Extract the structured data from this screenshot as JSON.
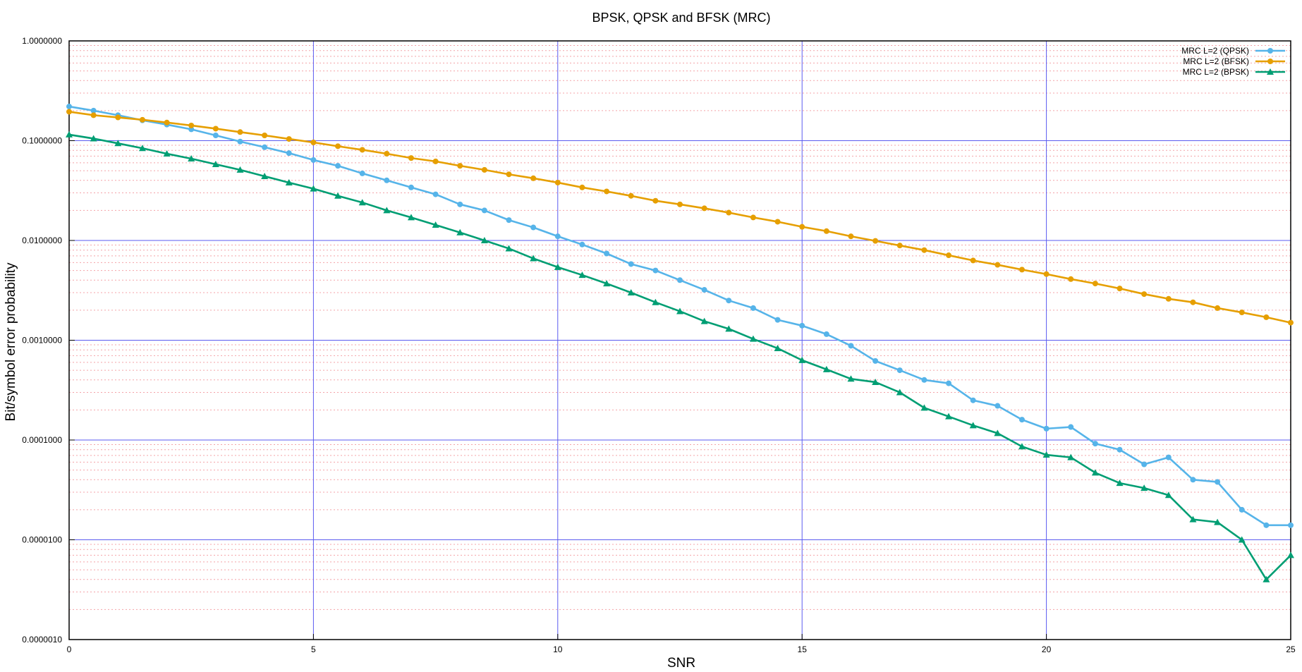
{
  "chart_data": {
    "type": "line",
    "title": "BPSK, QPSK and BFSK (MRC)",
    "xlabel": "SNR",
    "ylabel": "Bit/symbol error probability",
    "xlim": [
      0,
      25
    ],
    "ylim": [
      1e-06,
      1
    ],
    "yscale": "log",
    "xticks": [
      0,
      5,
      10,
      15,
      20,
      25
    ],
    "xtick_labels": [
      "0",
      "5",
      "10",
      "15",
      "20",
      "25"
    ],
    "yticks": [
      1,
      0.1,
      0.01,
      0.001,
      0.0001,
      1e-05,
      1e-06
    ],
    "ytick_labels": [
      "1.0000000",
      "0.1000000",
      "0.0100000",
      "0.0010000",
      "0.0001000",
      "0.0000100",
      "0.0000010"
    ],
    "grid": true,
    "legend_position": "top-right",
    "x": [
      0,
      0.5,
      1,
      1.5,
      2,
      2.5,
      3,
      3.5,
      4,
      4.5,
      5,
      5.5,
      6,
      6.5,
      7,
      7.5,
      8,
      8.5,
      9,
      9.5,
      10,
      10.5,
      11,
      11.5,
      12,
      12.5,
      13,
      13.5,
      14,
      14.5,
      15,
      15.5,
      16,
      16.5,
      17,
      17.5,
      18,
      18.5,
      19,
      19.5,
      20,
      20.5,
      21,
      21.5,
      22,
      22.5,
      23,
      23.5,
      24,
      24.5,
      25
    ],
    "series": [
      {
        "name": "MRC L=2 (QPSK)",
        "color": "#56b4e9",
        "marker": "circle",
        "values": [
          0.22,
          0.2,
          0.18,
          0.16,
          0.145,
          0.13,
          0.113,
          0.098,
          0.086,
          0.075,
          0.064,
          0.056,
          0.047,
          0.04,
          0.034,
          0.029,
          0.023,
          0.02,
          0.016,
          0.0135,
          0.011,
          0.0091,
          0.0074,
          0.0058,
          0.005,
          0.004,
          0.0032,
          0.0025,
          0.0021,
          0.0016,
          0.0014,
          0.00115,
          0.00088,
          0.00062,
          0.0005,
          0.0004,
          0.00037,
          0.00025,
          0.00022,
          0.00016,
          0.00013,
          0.000135,
          9.2e-05,
          8e-05,
          5.7e-05,
          6.7e-05,
          4e-05,
          3.8e-05,
          2e-05,
          1.4e-05,
          1.4e-05
        ]
      },
      {
        "name": "MRC L=2 (BFSK)",
        "color": "#e69f00",
        "marker": "circle",
        "values": [
          0.195,
          0.18,
          0.171,
          0.162,
          0.152,
          0.142,
          0.132,
          0.122,
          0.113,
          0.104,
          0.096,
          0.088,
          0.081,
          0.074,
          0.067,
          0.062,
          0.056,
          0.051,
          0.046,
          0.042,
          0.038,
          0.034,
          0.031,
          0.028,
          0.025,
          0.023,
          0.021,
          0.019,
          0.017,
          0.0154,
          0.0137,
          0.0124,
          0.011,
          0.0099,
          0.0089,
          0.008,
          0.0071,
          0.0063,
          0.0057,
          0.0051,
          0.0046,
          0.0041,
          0.0037,
          0.0033,
          0.0029,
          0.0026,
          0.0024,
          0.0021,
          0.0019,
          0.0017,
          0.0015
        ]
      },
      {
        "name": "MRC L=2 (BPSK)",
        "color": "#009e73",
        "marker": "triangle",
        "values": [
          0.115,
          0.105,
          0.094,
          0.084,
          0.074,
          0.066,
          0.058,
          0.051,
          0.044,
          0.038,
          0.033,
          0.028,
          0.024,
          0.02,
          0.017,
          0.0143,
          0.012,
          0.01,
          0.0083,
          0.0066,
          0.0054,
          0.0045,
          0.0037,
          0.003,
          0.0024,
          0.00195,
          0.00155,
          0.0013,
          0.00103,
          0.00083,
          0.00063,
          0.00051,
          0.00041,
          0.00038,
          0.0003,
          0.00021,
          0.000172,
          0.00014,
          0.000117,
          8.6e-05,
          7.1e-05,
          6.7e-05,
          4.7e-05,
          3.7e-05,
          3.3e-05,
          2.8e-05,
          1.6e-05,
          1.5e-05,
          1e-05,
          4e-06,
          7e-06
        ]
      }
    ]
  }
}
